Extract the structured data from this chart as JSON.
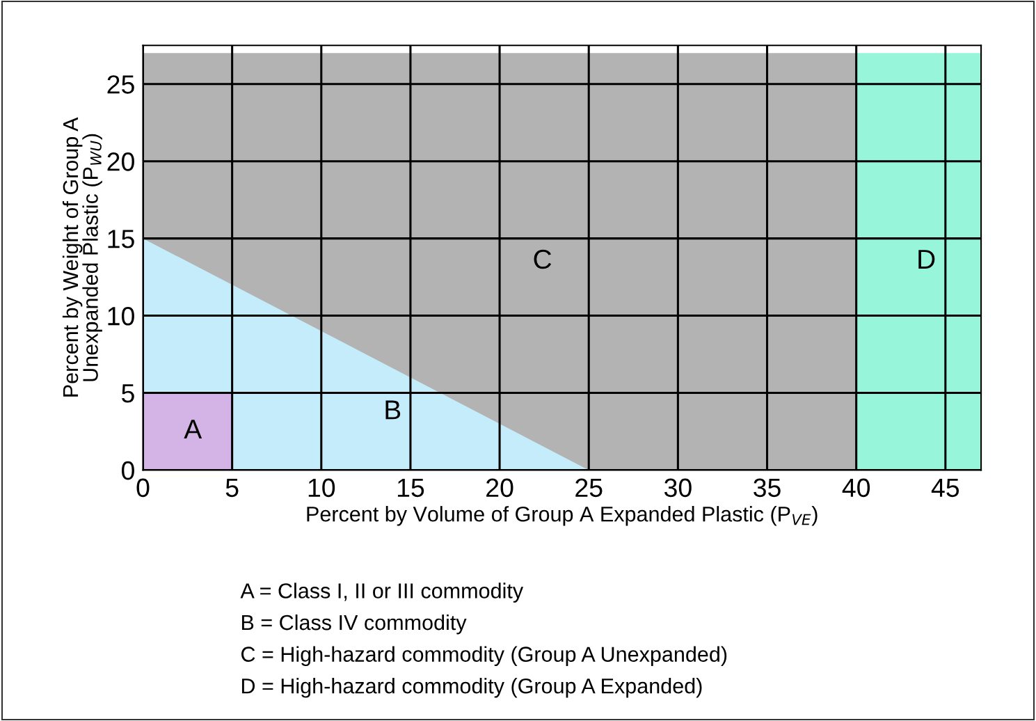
{
  "chart_data": {
    "type": "area",
    "xlabel": "Percent by Volume of Group A Expanded Plastic (P$_{VE}$)",
    "ylabel": "Percent by Weight of Group A\nUnexpanded Plastic (P$_{WU}$)",
    "series": [
      {
        "name": "C",
        "color": "#b3b3b3",
        "x": [
          0,
          40
        ],
        "values": [
          27,
          27
        ]
      },
      {
        "name": "B",
        "color": "#c4ecfa",
        "x": [
          0,
          25
        ],
        "values": [
          15,
          0
        ]
      },
      {
        "name": "A",
        "color": "#d4b3e6",
        "x": [
          0,
          5
        ],
        "values": [
          5,
          5
        ]
      },
      {
        "name": "D",
        "color": "#97f6da",
        "x": [
          40,
          47
        ],
        "values": [
          27,
          27
        ]
      }
    ],
    "xlim": [
      0,
      47
    ],
    "ylim": [
      0,
      27.5
    ],
    "xticks": [
      0,
      5,
      10,
      15,
      20,
      25,
      30,
      35,
      40,
      45
    ],
    "yticks": [
      0,
      5,
      10,
      15,
      20,
      25
    ],
    "grid": true,
    "annotations": [
      "A = Class I, II or III commodity",
      "B = Class IV commodity",
      "C = High-hazard commodity (Group A Unexpanded)",
      "D = High-hazard commodity (Group A Expanded)"
    ]
  }
}
